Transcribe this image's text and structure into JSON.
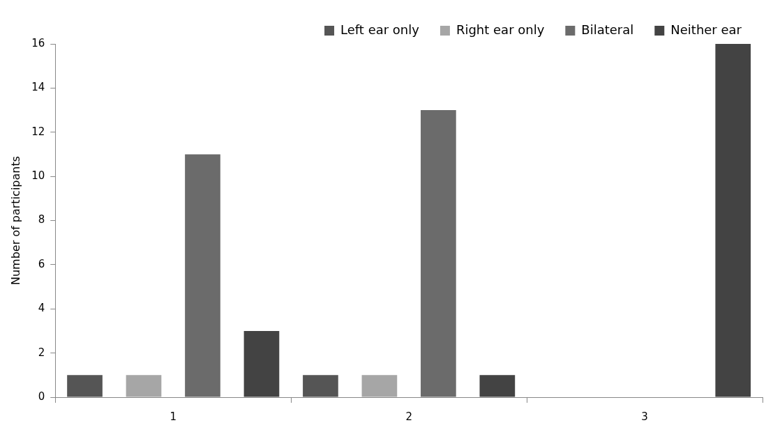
{
  "chart_data": {
    "type": "bar",
    "ylabel": "Number of participants",
    "categories": [
      "1",
      "2",
      "3"
    ],
    "series": [
      {
        "name": "Left ear only",
        "color": "#555555",
        "values": [
          1,
          1,
          0
        ]
      },
      {
        "name": "Right ear only",
        "color": "#a6a6a6",
        "values": [
          1,
          1,
          0
        ]
      },
      {
        "name": "Bilateral",
        "color": "#6b6b6b",
        "values": [
          11,
          13,
          0
        ]
      },
      {
        "name": "Neither ear",
        "color": "#434343",
        "values": [
          3,
          1,
          16
        ]
      }
    ],
    "ylim": [
      0,
      16
    ],
    "yticks": [
      0,
      2,
      4,
      6,
      8,
      10,
      12,
      14,
      16
    ],
    "grid": false,
    "legend": "top right"
  }
}
